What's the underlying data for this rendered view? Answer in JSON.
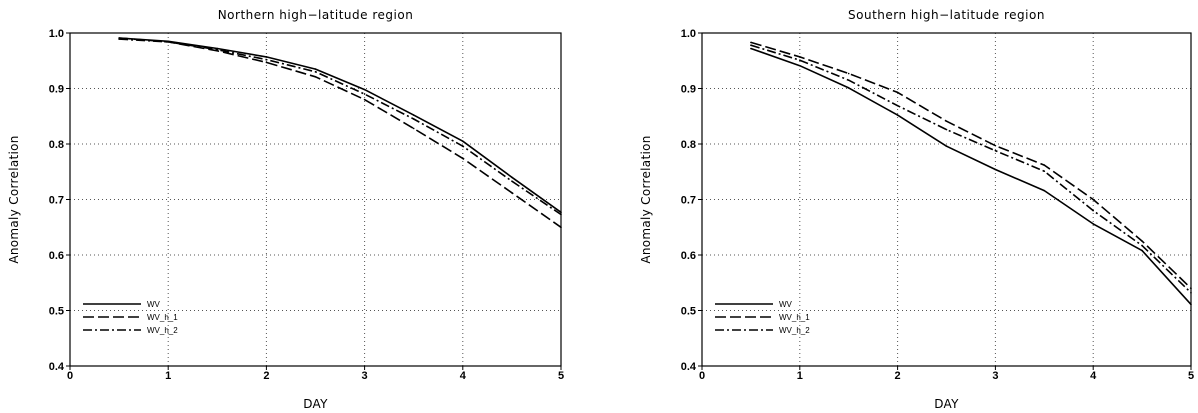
{
  "chart_data": [
    {
      "type": "line",
      "title": "Northern high−latitude region",
      "xlabel": "DAY",
      "ylabel": "Anomaly Correlation",
      "xlim": [
        0,
        5
      ],
      "ylim": [
        0.4,
        1.0
      ],
      "xticks": [
        "0",
        "1",
        "2",
        "3",
        "4",
        "5"
      ],
      "yticks": [
        "0.4",
        "0.5",
        "0.6",
        "0.7",
        "0.8",
        "0.9",
        "1.0"
      ],
      "grid": true,
      "legend_position": "bottom-left",
      "x": [
        0.5,
        1,
        1.5,
        2,
        2.5,
        3,
        3.5,
        4,
        4.5,
        5
      ],
      "series": [
        {
          "name": "WV",
          "dash": "solid",
          "values": [
            0.991,
            0.985,
            0.972,
            0.957,
            0.935,
            0.898,
            0.852,
            0.805,
            0.74,
            0.677
          ]
        },
        {
          "name": "WV_h_1",
          "dash": "dashed",
          "values": [
            0.991,
            0.984,
            0.968,
            0.947,
            0.921,
            0.88,
            0.828,
            0.774,
            0.712,
            0.65
          ]
        },
        {
          "name": "WV_h_2",
          "dash": "dashdot",
          "values": [
            0.989,
            0.984,
            0.97,
            0.952,
            0.93,
            0.89,
            0.845,
            0.796,
            0.733,
            0.673
          ]
        }
      ]
    },
    {
      "type": "line",
      "title": "Southern high−latitude region",
      "xlabel": "DAY",
      "ylabel": "Anomaly Correlation",
      "xlim": [
        0,
        5
      ],
      "ylim": [
        0.4,
        1.0
      ],
      "xticks": [
        "0",
        "1",
        "2",
        "3",
        "4",
        "5"
      ],
      "yticks": [
        "0.4",
        "0.5",
        "0.6",
        "0.7",
        "0.8",
        "0.9",
        "1.0"
      ],
      "grid": true,
      "legend_position": "bottom-left",
      "x": [
        0.5,
        1,
        1.5,
        2,
        2.5,
        3,
        3.5,
        4,
        4.5,
        5
      ],
      "series": [
        {
          "name": "WV",
          "dash": "solid",
          "values": [
            0.972,
            0.941,
            0.901,
            0.852,
            0.796,
            0.754,
            0.716,
            0.656,
            0.608,
            0.511
          ]
        },
        {
          "name": "WV_h_1",
          "dash": "dashed",
          "values": [
            0.983,
            0.957,
            0.927,
            0.893,
            0.841,
            0.797,
            0.762,
            0.7,
            0.625,
            0.54
          ]
        },
        {
          "name": "WV_h_2",
          "dash": "dashdot",
          "values": [
            0.978,
            0.951,
            0.915,
            0.869,
            0.826,
            0.788,
            0.751,
            0.68,
            0.617,
            0.532
          ]
        }
      ]
    }
  ]
}
